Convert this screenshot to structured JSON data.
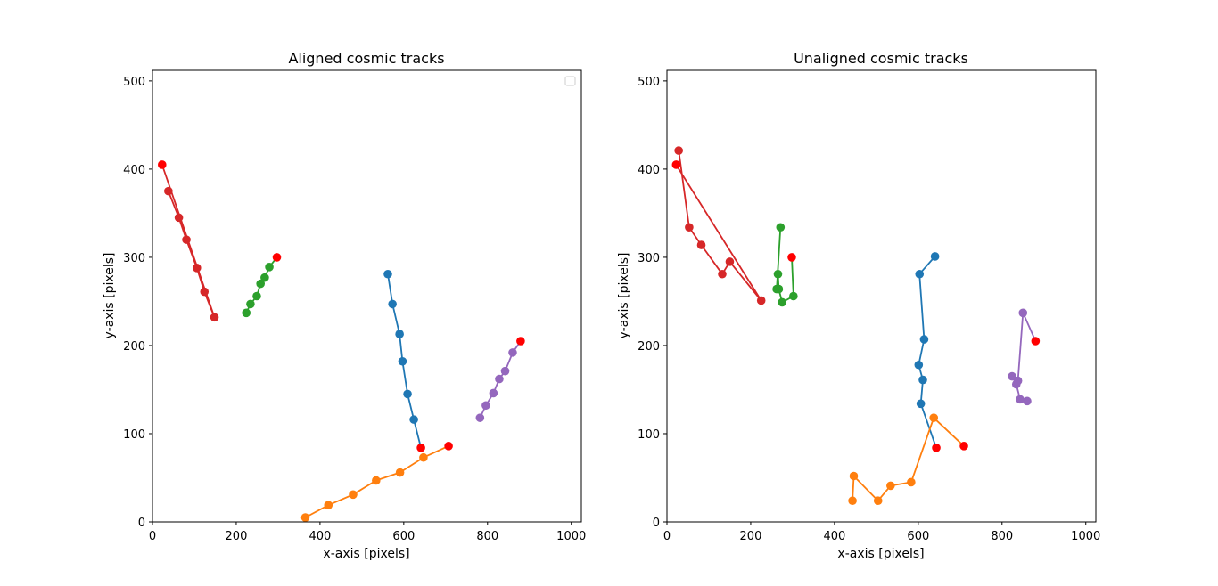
{
  "chart_data": [
    {
      "type": "scatter",
      "title": "Aligned cosmic tracks",
      "xlabel": "x-axis [pixels]",
      "ylabel": "y-axis [pixels]",
      "xlim": [
        0,
        1024
      ],
      "ylim": [
        0,
        512
      ],
      "xticks": [
        "0",
        "200",
        "400",
        "600",
        "800",
        "1000"
      ],
      "yticks": [
        "0",
        "100",
        "200",
        "300",
        "400",
        "500"
      ],
      "legend": {
        "location": "upper right",
        "entries": []
      },
      "series": [
        {
          "color": "#1f77b4",
          "points": [
            [
              562,
              281
            ],
            [
              573,
              247
            ],
            [
              590,
              213
            ],
            [
              597,
              182
            ],
            [
              609,
              145
            ],
            [
              624,
              116
            ]
          ],
          "endpoint": [
            641,
            84
          ]
        },
        {
          "color": "#ff7f0e",
          "points": [
            [
              365,
              5
            ],
            [
              420,
              19
            ],
            [
              479,
              31
            ],
            [
              534,
              47
            ],
            [
              591,
              56
            ],
            [
              647,
              73
            ]
          ],
          "endpoint": [
            707,
            86
          ]
        },
        {
          "color": "#2ca02c",
          "points": [
            [
              224,
              237
            ],
            [
              234,
              247
            ],
            [
              249,
              256
            ],
            [
              258,
              270
            ],
            [
              268,
              277
            ],
            [
              279,
              289
            ]
          ],
          "endpoint": [
            297,
            300
          ]
        },
        {
          "color": "#d62728",
          "points": [
            [
              38,
              375
            ],
            [
              63,
              345
            ],
            [
              81,
              320
            ],
            [
              106,
              288
            ],
            [
              124,
              261
            ],
            [
              148,
              232
            ]
          ],
          "endpoint": [
            23,
            405
          ]
        },
        {
          "color": "#9467bd",
          "points": [
            [
              782,
              118
            ],
            [
              796,
              132
            ],
            [
              814,
              146
            ],
            [
              828,
              162
            ],
            [
              842,
              171
            ],
            [
              860,
              192
            ]
          ],
          "endpoint": [
            879,
            205
          ]
        }
      ],
      "endpoint_color": "#ff0000"
    },
    {
      "type": "scatter",
      "title": "Unaligned cosmic tracks",
      "xlabel": "x-axis [pixels]",
      "ylabel": "y-axis [pixels]",
      "xlim": [
        0,
        1024
      ],
      "ylim": [
        0,
        512
      ],
      "xticks": [
        "0",
        "200",
        "400",
        "600",
        "800",
        "1000"
      ],
      "yticks": [
        "0",
        "100",
        "200",
        "300",
        "400",
        "500"
      ],
      "series": [
        {
          "color": "#1f77b4",
          "points": [
            [
              640,
              301
            ],
            [
              603,
              281
            ],
            [
              614,
              207
            ],
            [
              601,
              178
            ],
            [
              611,
              161
            ],
            [
              606,
              134
            ]
          ],
          "endpoint": [
            643,
            84
          ]
        },
        {
          "color": "#ff7f0e",
          "points": [
            [
              443,
              24
            ],
            [
              446,
              52
            ],
            [
              504,
              24
            ],
            [
              534,
              41
            ],
            [
              583,
              45
            ],
            [
              637,
              118
            ]
          ],
          "endpoint": [
            709,
            86
          ]
        },
        {
          "color": "#2ca02c",
          "points": [
            [
              271,
              334
            ],
            [
              262,
              264
            ],
            [
              265,
              281
            ],
            [
              267,
              264
            ],
            [
              275,
              249
            ],
            [
              302,
              256
            ]
          ],
          "endpoint": [
            298,
            300
          ]
        },
        {
          "color": "#d62728",
          "points": [
            [
              28,
              421
            ],
            [
              53,
              334
            ],
            [
              82,
              314
            ],
            [
              132,
              281
            ],
            [
              150,
              295
            ],
            [
              225,
              251
            ]
          ],
          "endpoint": [
            22,
            405
          ]
        },
        {
          "color": "#9467bd",
          "points": [
            [
              860,
              137
            ],
            [
              843,
              139
            ],
            [
              834,
              156
            ],
            [
              824,
              165
            ],
            [
              838,
              160
            ],
            [
              850,
              237
            ]
          ],
          "endpoint": [
            880,
            205
          ]
        }
      ],
      "endpoint_color": "#ff0000"
    }
  ]
}
